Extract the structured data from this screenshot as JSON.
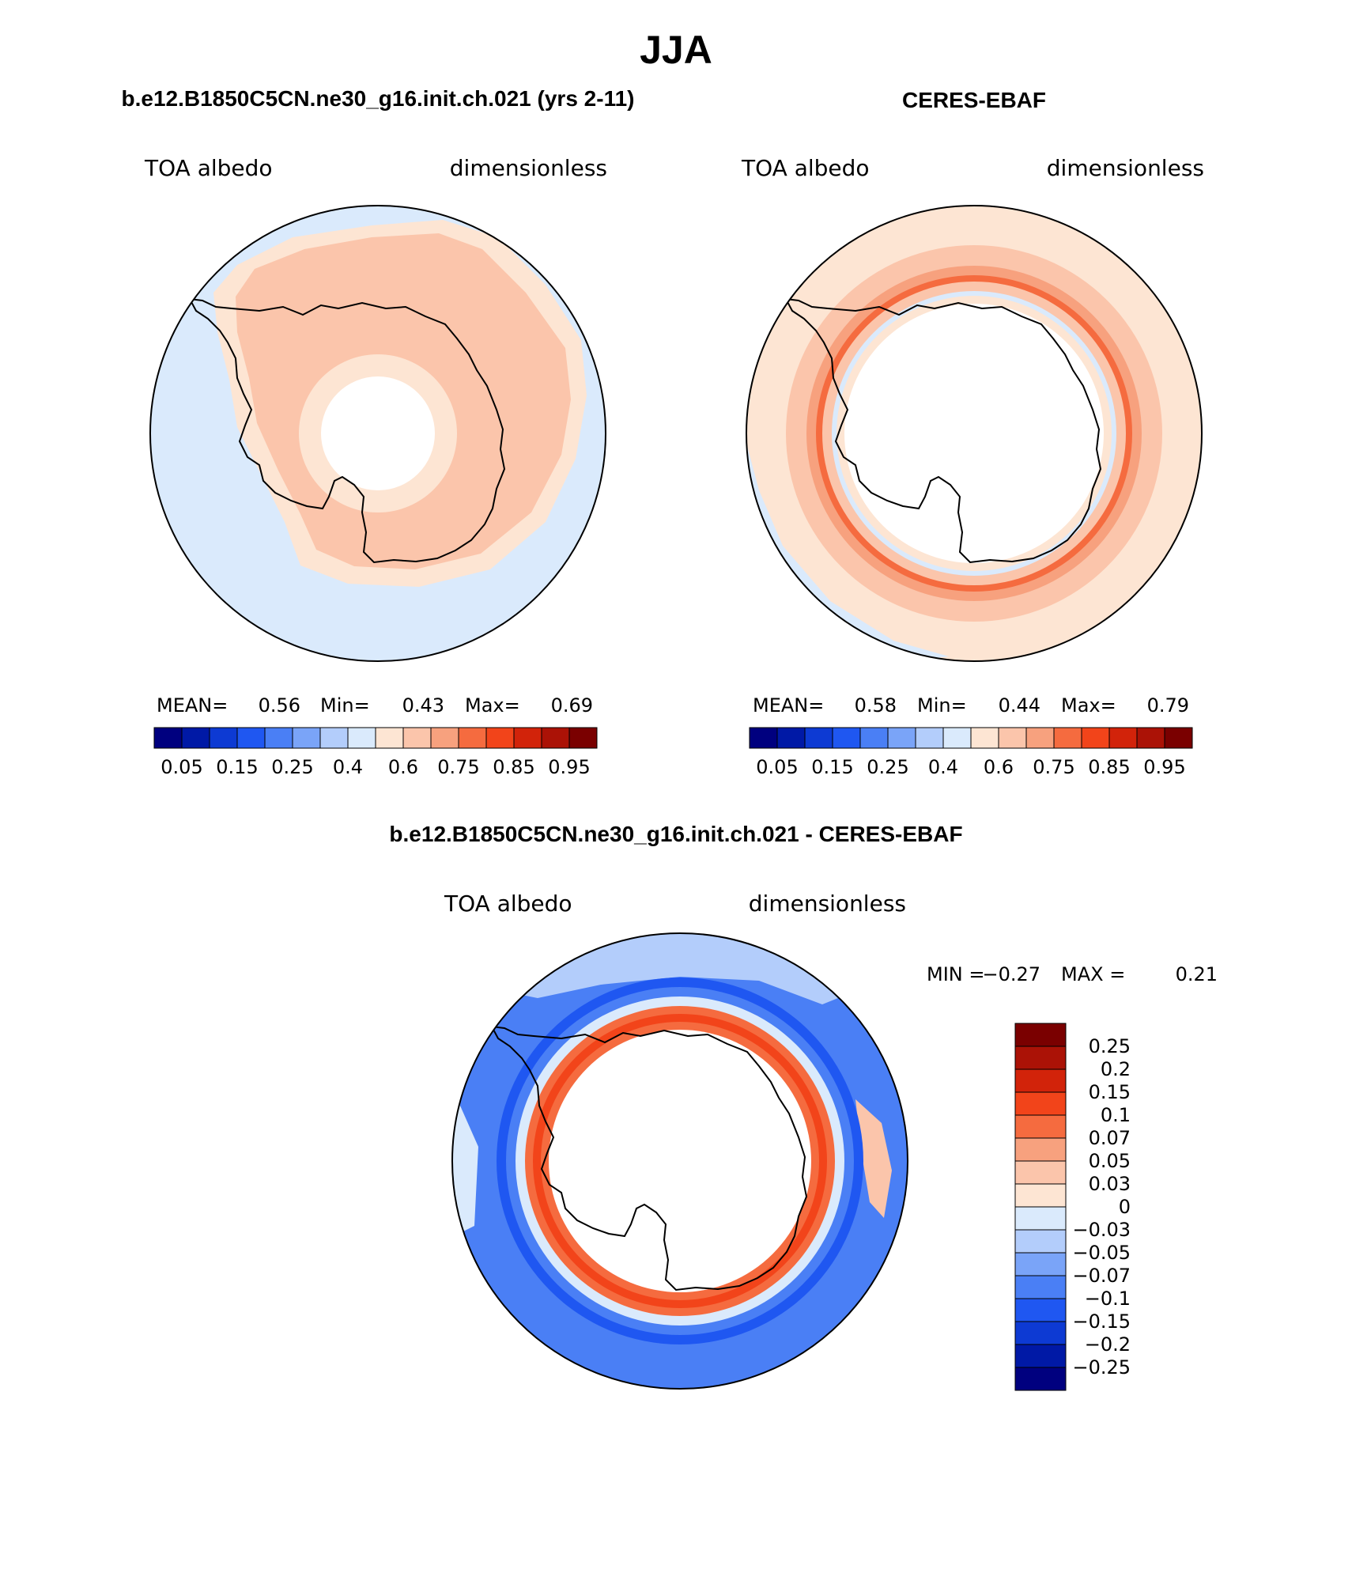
{
  "title": "JJA",
  "panels": [
    {
      "heading": "b.e12.B1850C5CN.ne30_g16.init.ch.021 (yrs 2-11)",
      "left_label": "TOA albedo",
      "right_label": "dimensionless",
      "stats": {
        "mean_label": "MEAN=",
        "mean": "0.56",
        "min_label": "Min=",
        "min": "0.43",
        "max_label": "Max=",
        "max": "0.69"
      }
    },
    {
      "heading": "CERES-EBAF",
      "left_label": "TOA albedo",
      "right_label": "dimensionless",
      "stats": {
        "mean_label": "MEAN=",
        "mean": "0.58",
        "min_label": "Min=",
        "min": "0.44",
        "max_label": "Max=",
        "max": "0.79"
      }
    },
    {
      "heading": "b.e12.B1850C5CN.ne30_g16.init.ch.021 - CERES-EBAF",
      "left_label": "TOA albedo",
      "right_label": "dimensionless",
      "stats": {
        "min_label": "MIN =",
        "min": "−0.27",
        "max_label": "MAX =",
        "max": "0.21"
      }
    }
  ],
  "colorbar_abs": {
    "colors": [
      "#00007f",
      "#0019a6",
      "#0d3ad3",
      "#1f57f1",
      "#4a7ff5",
      "#7aa4f8",
      "#b3cdfb",
      "#daeafc",
      "#fde5d3",
      "#fbc5ab",
      "#f7a17e",
      "#f56b3f",
      "#f2441a",
      "#d2230a",
      "#ab1206",
      "#7a0000"
    ],
    "tick_labels": [
      "0.05",
      "0.15",
      "0.25",
      "0.4",
      "0.6",
      "0.75",
      "0.85",
      "0.95"
    ]
  },
  "colorbar_diff": {
    "colors": [
      "#7a0000",
      "#ab1206",
      "#d2230a",
      "#f2441a",
      "#f56b3f",
      "#f7a17e",
      "#fbc5ab",
      "#fde5d3",
      "#daeafc",
      "#b3cdfb",
      "#7aa4f8",
      "#4a7ff5",
      "#1f57f1",
      "#0d3ad3",
      "#0019a6",
      "#00007f"
    ],
    "tick_labels": [
      "0.25",
      "0.2",
      "0.15",
      "0.1",
      "0.07",
      "0.05",
      "0.03",
      "0",
      "−0.03",
      "−0.05",
      "−0.07",
      "−0.1",
      "−0.15",
      "−0.2",
      "−0.25"
    ]
  }
}
